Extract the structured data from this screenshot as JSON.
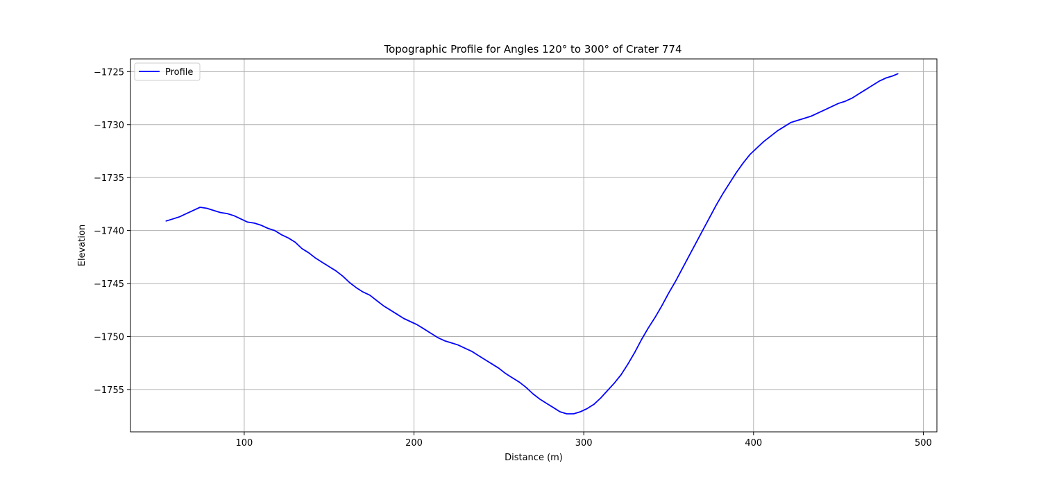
{
  "chart_data": {
    "type": "line",
    "title": "Topographic Profile for Angles 120° to 300° of Crater 774",
    "xlabel": "Distance (m)",
    "ylabel": "Elevation",
    "xlim": [
      33,
      508
    ],
    "ylim": [
      -1759.0,
      -1723.8
    ],
    "xticks": [
      100,
      200,
      300,
      400,
      500
    ],
    "yticks": [
      -1725,
      -1730,
      -1735,
      -1740,
      -1745,
      -1750,
      -1755
    ],
    "xtick_labels": [
      "100",
      "200",
      "300",
      "400",
      "500"
    ],
    "ytick_labels": [
      "−1725",
      "−1730",
      "−1735",
      "−1740",
      "−1745",
      "−1750",
      "−1755"
    ],
    "grid": true,
    "legend_position": "top-left",
    "series": [
      {
        "name": "Profile",
        "color": "#0000ff",
        "points": [
          [
            54,
            -1739.1
          ],
          [
            58,
            -1738.9
          ],
          [
            62,
            -1738.7
          ],
          [
            66,
            -1738.4
          ],
          [
            70,
            -1738.1
          ],
          [
            74,
            -1737.8
          ],
          [
            78,
            -1737.9
          ],
          [
            82,
            -1738.1
          ],
          [
            86,
            -1738.3
          ],
          [
            90,
            -1738.4
          ],
          [
            94,
            -1738.6
          ],
          [
            98,
            -1738.9
          ],
          [
            102,
            -1739.2
          ],
          [
            106,
            -1739.3
          ],
          [
            110,
            -1739.5
          ],
          [
            114,
            -1739.8
          ],
          [
            118,
            -1740.0
          ],
          [
            122,
            -1740.4
          ],
          [
            126,
            -1740.7
          ],
          [
            130,
            -1741.1
          ],
          [
            134,
            -1741.7
          ],
          [
            138,
            -1742.1
          ],
          [
            142,
            -1742.6
          ],
          [
            146,
            -1743.0
          ],
          [
            150,
            -1743.4
          ],
          [
            154,
            -1743.8
          ],
          [
            158,
            -1744.3
          ],
          [
            162,
            -1744.9
          ],
          [
            166,
            -1745.4
          ],
          [
            170,
            -1745.8
          ],
          [
            174,
            -1746.1
          ],
          [
            178,
            -1746.6
          ],
          [
            182,
            -1747.1
          ],
          [
            186,
            -1747.5
          ],
          [
            190,
            -1747.9
          ],
          [
            194,
            -1748.3
          ],
          [
            198,
            -1748.6
          ],
          [
            202,
            -1748.9
          ],
          [
            206,
            -1749.3
          ],
          [
            210,
            -1749.7
          ],
          [
            214,
            -1750.1
          ],
          [
            218,
            -1750.4
          ],
          [
            222,
            -1750.6
          ],
          [
            226,
            -1750.8
          ],
          [
            230,
            -1751.1
          ],
          [
            234,
            -1751.4
          ],
          [
            238,
            -1751.8
          ],
          [
            242,
            -1752.2
          ],
          [
            246,
            -1752.6
          ],
          [
            250,
            -1753.0
          ],
          [
            254,
            -1753.5
          ],
          [
            258,
            -1753.9
          ],
          [
            262,
            -1754.3
          ],
          [
            266,
            -1754.8
          ],
          [
            270,
            -1755.4
          ],
          [
            274,
            -1755.9
          ],
          [
            278,
            -1756.3
          ],
          [
            282,
            -1756.7
          ],
          [
            286,
            -1757.1
          ],
          [
            290,
            -1757.3
          ],
          [
            294,
            -1757.3
          ],
          [
            298,
            -1757.1
          ],
          [
            302,
            -1756.8
          ],
          [
            306,
            -1756.4
          ],
          [
            310,
            -1755.8
          ],
          [
            314,
            -1755.1
          ],
          [
            318,
            -1754.4
          ],
          [
            322,
            -1753.6
          ],
          [
            326,
            -1752.6
          ],
          [
            330,
            -1751.5
          ],
          [
            334,
            -1750.3
          ],
          [
            338,
            -1749.2
          ],
          [
            342,
            -1748.2
          ],
          [
            346,
            -1747.1
          ],
          [
            350,
            -1745.9
          ],
          [
            354,
            -1744.8
          ],
          [
            358,
            -1743.6
          ],
          [
            362,
            -1742.4
          ],
          [
            366,
            -1741.2
          ],
          [
            370,
            -1740.0
          ],
          [
            374,
            -1738.8
          ],
          [
            378,
            -1737.6
          ],
          [
            382,
            -1736.5
          ],
          [
            386,
            -1735.5
          ],
          [
            390,
            -1734.5
          ],
          [
            394,
            -1733.6
          ],
          [
            398,
            -1732.8
          ],
          [
            402,
            -1732.2
          ],
          [
            406,
            -1731.6
          ],
          [
            410,
            -1731.1
          ],
          [
            414,
            -1730.6
          ],
          [
            418,
            -1730.2
          ],
          [
            422,
            -1729.8
          ],
          [
            426,
            -1729.6
          ],
          [
            430,
            -1729.4
          ],
          [
            434,
            -1729.2
          ],
          [
            438,
            -1728.9
          ],
          [
            442,
            -1728.6
          ],
          [
            446,
            -1728.3
          ],
          [
            450,
            -1728.0
          ],
          [
            454,
            -1727.8
          ],
          [
            458,
            -1727.5
          ],
          [
            462,
            -1727.1
          ],
          [
            466,
            -1726.7
          ],
          [
            470,
            -1726.3
          ],
          [
            474,
            -1725.9
          ],
          [
            478,
            -1725.6
          ],
          [
            482,
            -1725.4
          ],
          [
            485,
            -1725.2
          ]
        ]
      }
    ]
  }
}
